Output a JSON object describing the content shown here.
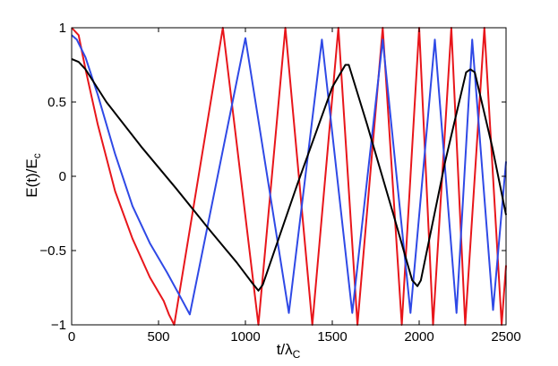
{
  "chart_data": {
    "type": "line",
    "xlabel": {
      "main": "t/λ",
      "sub": "C"
    },
    "ylabel": {
      "main": "E(t)/E",
      "sub": "c"
    },
    "xlim": [
      0,
      2500
    ],
    "ylim": [
      -1,
      1
    ],
    "x_ticks": [
      0,
      500,
      1000,
      1500,
      2000,
      2500
    ],
    "x_tick_labels": [
      "0",
      "500",
      "1000",
      "1500",
      "2000",
      "2500"
    ],
    "y_ticks": [
      -1,
      -0.5,
      0,
      0.5,
      1
    ],
    "y_tick_labels": [
      "−1",
      "−0.5",
      "0",
      "0.5",
      "1"
    ],
    "grid": false,
    "series": [
      {
        "color": "#e8161b",
        "points": [
          [
            0,
            1.0
          ],
          [
            40,
            0.95
          ],
          [
            80,
            0.72
          ],
          [
            150,
            0.35
          ],
          [
            250,
            -0.1
          ],
          [
            350,
            -0.42
          ],
          [
            450,
            -0.68
          ],
          [
            530,
            -0.84
          ],
          [
            560,
            -0.93
          ],
          [
            590,
            -1.0
          ],
          [
            870,
            1.0
          ],
          [
            1075,
            -1.0
          ],
          [
            1230,
            1.0
          ],
          [
            1385,
            -1.0
          ],
          [
            1535,
            1.0
          ],
          [
            1645,
            -1.0
          ],
          [
            1790,
            1.0
          ],
          [
            1900,
            -1.0
          ],
          [
            2000,
            1.0
          ],
          [
            2080,
            -1.0
          ],
          [
            2185,
            1.0
          ],
          [
            2265,
            -1.0
          ],
          [
            2375,
            1.0
          ],
          [
            2475,
            -1.0
          ],
          [
            2500,
            -0.6
          ]
        ]
      },
      {
        "color": "#2f49e6",
        "points": [
          [
            0,
            0.95
          ],
          [
            30,
            0.92
          ],
          [
            80,
            0.8
          ],
          [
            150,
            0.55
          ],
          [
            250,
            0.15
          ],
          [
            350,
            -0.2
          ],
          [
            450,
            -0.45
          ],
          [
            550,
            -0.65
          ],
          [
            620,
            -0.8
          ],
          [
            680,
            -0.93
          ],
          [
            1000,
            0.93
          ],
          [
            1250,
            -0.92
          ],
          [
            1440,
            0.92
          ],
          [
            1615,
            -0.92
          ],
          [
            1790,
            0.92
          ],
          [
            1950,
            -0.92
          ],
          [
            2090,
            0.92
          ],
          [
            2215,
            -0.92
          ],
          [
            2305,
            0.92
          ],
          [
            2425,
            -0.9
          ],
          [
            2500,
            0.1
          ]
        ]
      },
      {
        "color": "#000000",
        "points": [
          [
            0,
            0.79
          ],
          [
            40,
            0.77
          ],
          [
            80,
            0.72
          ],
          [
            200,
            0.5
          ],
          [
            400,
            0.2
          ],
          [
            600,
            -0.08
          ],
          [
            800,
            -0.37
          ],
          [
            950,
            -0.58
          ],
          [
            1040,
            -0.72
          ],
          [
            1075,
            -0.77
          ],
          [
            1100,
            -0.73
          ],
          [
            1300,
            -0.05
          ],
          [
            1500,
            0.6
          ],
          [
            1575,
            0.75
          ],
          [
            1595,
            0.75
          ],
          [
            1700,
            0.35
          ],
          [
            1850,
            -0.25
          ],
          [
            1960,
            -0.7
          ],
          [
            1990,
            -0.74
          ],
          [
            2010,
            -0.7
          ],
          [
            2150,
            0.1
          ],
          [
            2270,
            0.7
          ],
          [
            2295,
            0.72
          ],
          [
            2320,
            0.7
          ],
          [
            2420,
            0.2
          ],
          [
            2500,
            -0.26
          ]
        ]
      }
    ]
  }
}
